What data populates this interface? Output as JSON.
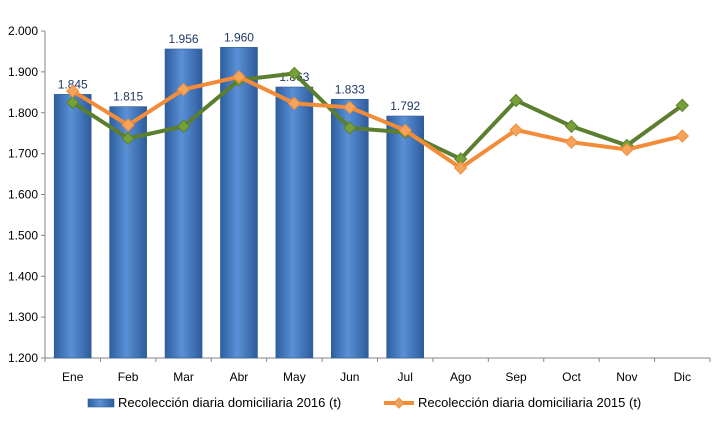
{
  "chart_data": {
    "type": "bar",
    "categories": [
      "Ene",
      "Feb",
      "Mar",
      "Abr",
      "May",
      "Jun",
      "Jul",
      "Ago",
      "Sep",
      "Oct",
      "Nov",
      "Dic"
    ],
    "ylim": [
      1200,
      2000
    ],
    "yticks": [
      1200,
      1300,
      1400,
      1500,
      1600,
      1700,
      1800,
      1900,
      2000
    ],
    "ytick_labels": [
      "1.200",
      "1.300",
      "1.400",
      "1.500",
      "1.600",
      "1.700",
      "1.800",
      "1.900",
      "2.000"
    ],
    "grid": false,
    "legend_position": "bottom",
    "bar_series": {
      "name": "Recolección diaria domiciliaria 2016 (t)",
      "values": [
        1845,
        1815,
        1956,
        1960,
        1863,
        1833,
        1792,
        null,
        null,
        null,
        null,
        null
      ],
      "labels": [
        "1.845",
        "1.815",
        "1.956",
        "1.960",
        "1.863",
        "1.833",
        "1.792",
        "",
        "",
        "",
        "",
        ""
      ],
      "color": "#4A7EC1"
    },
    "line_series": [
      {
        "name": "",
        "values": [
          1825,
          1737,
          1767,
          1880,
          1896,
          1763,
          1752,
          1687,
          1830,
          1767,
          1720,
          1818
        ],
        "color": "#5B7F2E",
        "marker_color": "#76A03A"
      },
      {
        "name": "Recolección diaria domiciliaria 2015 (t)",
        "values": [
          1853,
          1770,
          1857,
          1888,
          1823,
          1813,
          1757,
          1665,
          1758,
          1728,
          1710,
          1743
        ],
        "color": "#F28C38",
        "marker_color": "#F5A45C"
      }
    ]
  }
}
